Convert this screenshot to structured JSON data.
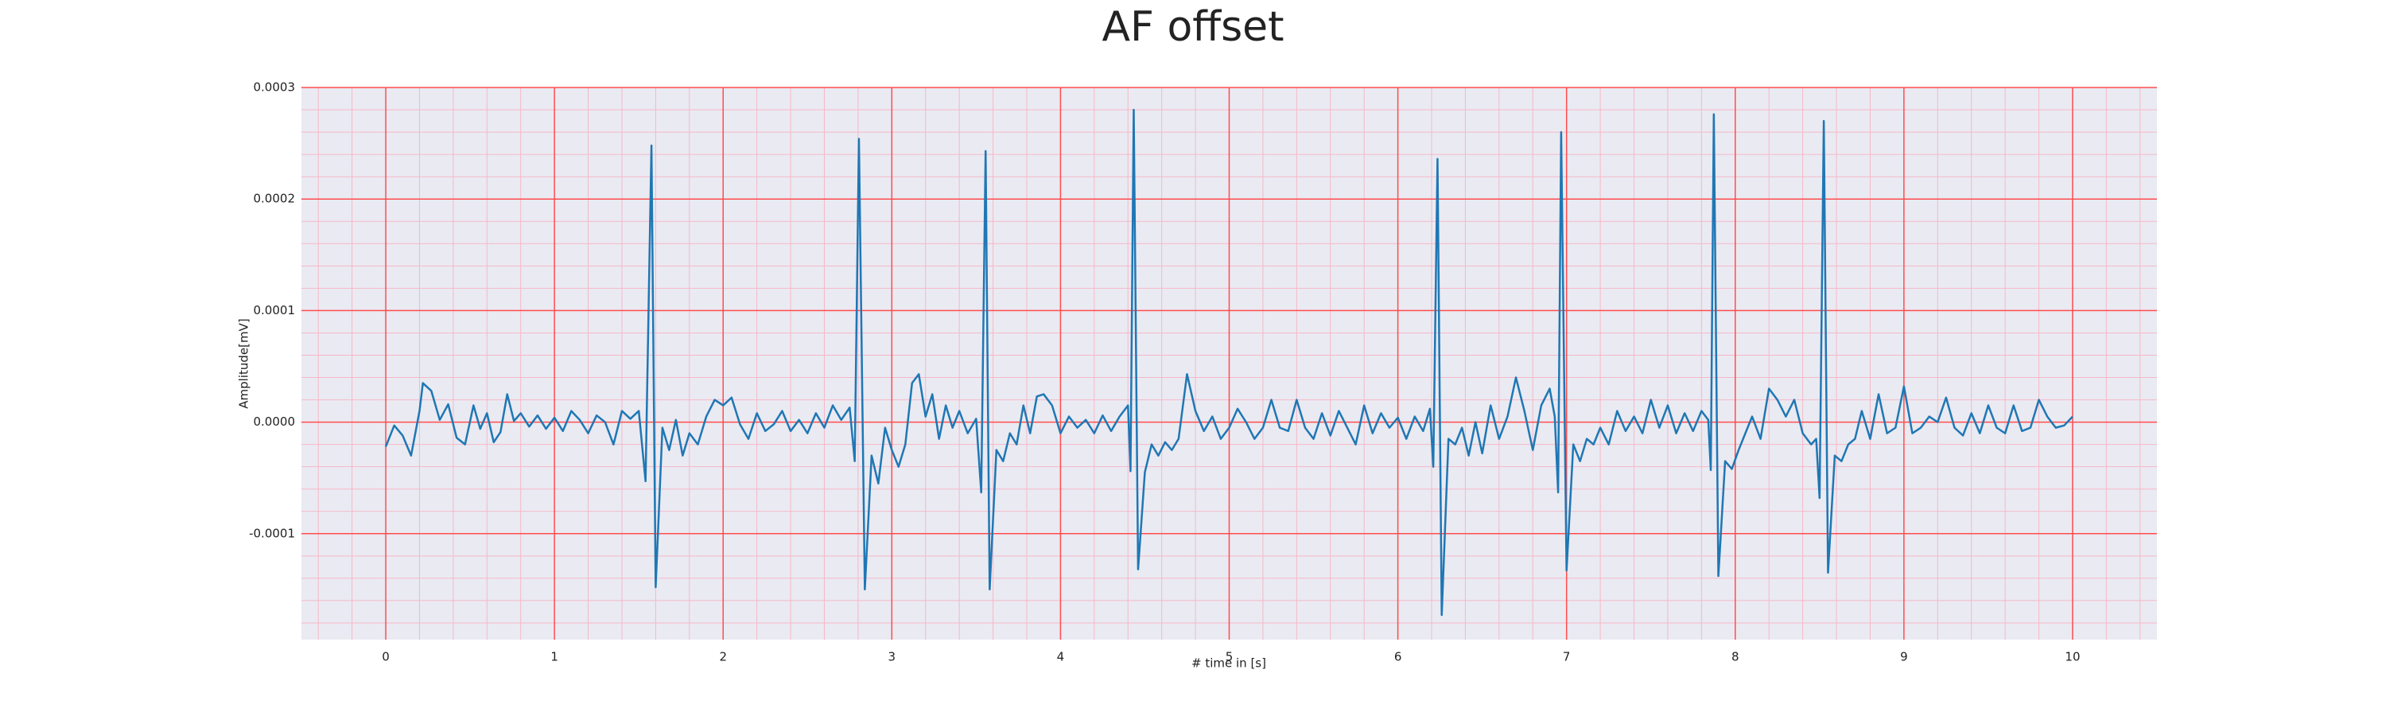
{
  "chart_data": {
    "type": "line",
    "title": "AF offset",
    "xlabel": "# time in [s]",
    "ylabel": "Amplitude[mV]",
    "x": [
      0,
      0.05,
      0.1,
      0.15,
      0.2,
      0.22,
      0.27,
      0.32,
      0.37,
      0.42,
      0.47,
      0.52,
      0.56,
      0.6,
      0.64,
      0.68,
      0.72,
      0.76,
      0.8,
      0.85,
      0.9,
      0.95,
      1.0,
      1.05,
      1.1,
      1.15,
      1.2,
      1.25,
      1.3,
      1.35,
      1.4,
      1.45,
      1.5,
      1.54,
      1.575,
      1.6,
      1.64,
      1.68,
      1.72,
      1.76,
      1.8,
      1.85,
      1.9,
      1.95,
      2.0,
      2.05,
      2.1,
      2.15,
      2.2,
      2.25,
      2.3,
      2.35,
      2.4,
      2.45,
      2.5,
      2.55,
      2.6,
      2.65,
      2.7,
      2.75,
      2.78,
      2.805,
      2.84,
      2.88,
      2.92,
      2.96,
      3.0,
      3.04,
      3.08,
      3.12,
      3.16,
      3.2,
      3.24,
      3.28,
      3.32,
      3.36,
      3.4,
      3.45,
      3.5,
      3.53,
      3.556,
      3.58,
      3.62,
      3.66,
      3.7,
      3.74,
      3.78,
      3.82,
      3.86,
      3.9,
      3.95,
      4.0,
      4.05,
      4.1,
      4.15,
      4.2,
      4.25,
      4.3,
      4.35,
      4.4,
      4.415,
      4.434,
      4.46,
      4.5,
      4.54,
      4.58,
      4.62,
      4.66,
      4.7,
      4.75,
      4.8,
      4.85,
      4.9,
      4.95,
      5.0,
      5.05,
      5.1,
      5.15,
      5.2,
      5.25,
      5.3,
      5.35,
      5.4,
      5.45,
      5.5,
      5.55,
      5.6,
      5.65,
      5.7,
      5.75,
      5.8,
      5.85,
      5.9,
      5.95,
      6.0,
      6.05,
      6.1,
      6.15,
      6.19,
      6.21,
      6.235,
      6.26,
      6.3,
      6.34,
      6.38,
      6.42,
      6.46,
      6.5,
      6.55,
      6.6,
      6.65,
      6.7,
      6.75,
      6.8,
      6.85,
      6.9,
      6.93,
      6.95,
      6.968,
      7.0,
      7.04,
      7.08,
      7.12,
      7.16,
      7.2,
      7.25,
      7.3,
      7.35,
      7.4,
      7.45,
      7.5,
      7.55,
      7.6,
      7.65,
      7.7,
      7.75,
      7.8,
      7.84,
      7.855,
      7.873,
      7.9,
      7.94,
      7.98,
      8.02,
      8.06,
      8.1,
      8.15,
      8.2,
      8.25,
      8.3,
      8.35,
      8.4,
      8.45,
      8.48,
      8.5,
      8.525,
      8.55,
      8.59,
      8.63,
      8.67,
      8.71,
      8.75,
      8.8,
      8.85,
      8.9,
      8.95,
      9.0,
      9.05,
      9.1,
      9.15,
      9.2,
      9.25,
      9.3,
      9.35,
      9.4,
      9.45,
      9.5,
      9.55,
      9.6,
      9.65,
      9.7,
      9.75,
      9.8,
      9.85,
      9.9,
      9.95,
      10.0
    ],
    "series": [
      {
        "name": "AF offset",
        "color": "#1f77b4",
        "values": [
          -2.2e-05,
          -3e-06,
          -1.2e-05,
          -3e-05,
          1e-05,
          3.5e-05,
          2.8e-05,
          2e-06,
          1.6e-05,
          -1.4e-05,
          -2e-05,
          1.5e-05,
          -6e-06,
          8e-06,
          -1.8e-05,
          -9e-06,
          2.5e-05,
          1e-06,
          8e-06,
          -4e-06,
          6e-06,
          -6e-06,
          4e-06,
          -8e-06,
          1e-05,
          2e-06,
          -1e-05,
          6e-06,
          0,
          -2e-05,
          1e-05,
          3e-06,
          1e-05,
          -5.3e-05,
          0.000248,
          -0.000148,
          -5e-06,
          -2.5e-05,
          2e-06,
          -3e-05,
          -1e-05,
          -2e-05,
          5e-06,
          2e-05,
          1.5e-05,
          2.2e-05,
          -2e-06,
          -1.5e-05,
          8e-06,
          -8e-06,
          -2e-06,
          1e-05,
          -8e-06,
          2e-06,
          -1e-05,
          8e-06,
          -5e-06,
          1.5e-05,
          2e-06,
          1.3e-05,
          -3.5e-05,
          0.000254,
          -0.00015,
          -3e-05,
          -5.5e-05,
          -5e-06,
          -2.5e-05,
          -4e-05,
          -2e-05,
          3.5e-05,
          4.3e-05,
          5e-06,
          2.5e-05,
          -1.5e-05,
          1.5e-05,
          -5e-06,
          1e-05,
          -1e-05,
          3e-06,
          -6.3e-05,
          0.000243,
          -0.00015,
          -2.5e-05,
          -3.5e-05,
          -1e-05,
          -2e-05,
          1.5e-05,
          -1e-05,
          2.3e-05,
          2.5e-05,
          1.5e-05,
          -1e-05,
          5e-06,
          -5e-06,
          2e-06,
          -1e-05,
          6e-06,
          -8e-06,
          5e-06,
          1.5e-05,
          -4.4e-05,
          0.00028,
          -0.000132,
          -4.5e-05,
          -2e-05,
          -3e-05,
          -1.8e-05,
          -2.5e-05,
          -1.5e-05,
          4.3e-05,
          1e-05,
          -8e-06,
          5e-06,
          -1.5e-05,
          -5e-06,
          1.2e-05,
          0,
          -1.5e-05,
          -5e-06,
          2e-05,
          -5e-06,
          -8e-06,
          2e-05,
          -5e-06,
          -1.5e-05,
          8e-06,
          -1.2e-05,
          1e-05,
          -5e-06,
          -2e-05,
          1.5e-05,
          -1e-05,
          8e-06,
          -5e-06,
          4e-06,
          -1.5e-05,
          5e-06,
          -8e-06,
          1.2e-05,
          -4e-05,
          0.000236,
          -0.000173,
          -1.5e-05,
          -2e-05,
          -5e-06,
          -3e-05,
          0,
          -2.8e-05,
          1.5e-05,
          -1.5e-05,
          5e-06,
          4e-05,
          1e-05,
          -2.5e-05,
          1.5e-05,
          3e-05,
          5e-06,
          -6.3e-05,
          0.00026,
          -0.000133,
          -2e-05,
          -3.5e-05,
          -1.5e-05,
          -2e-05,
          -5e-06,
          -2e-05,
          1e-05,
          -8e-06,
          5e-06,
          -1e-05,
          2e-05,
          -5e-06,
          1.5e-05,
          -1e-05,
          8e-06,
          -8e-06,
          1e-05,
          2e-06,
          -4.3e-05,
          0.000276,
          -0.000138,
          -3.5e-05,
          -4.2e-05,
          -2.5e-05,
          -1e-05,
          5e-06,
          -1.5e-05,
          3e-05,
          2e-05,
          5e-06,
          2e-05,
          -1e-05,
          -2e-05,
          -1.5e-05,
          -6.8e-05,
          0.00027,
          -0.000135,
          -3e-05,
          -3.5e-05,
          -2e-05,
          -1.5e-05,
          1e-05,
          -1.5e-05,
          2.5e-05,
          -1e-05,
          -5e-06,
          3.2e-05,
          -1e-05,
          -5e-06,
          5e-06,
          0,
          2.2e-05,
          -5e-06,
          -1.2e-05,
          8e-06,
          -1e-05,
          1.5e-05,
          -5e-06,
          -1e-05,
          1.5e-05,
          -8e-06,
          -5e-06,
          2e-05,
          5e-06,
          -5e-06,
          -3e-06,
          5e-06
        ]
      }
    ],
    "xlim": [
      -0.5,
      10.5
    ],
    "xticks": [
      0,
      1,
      2,
      3,
      4,
      5,
      6,
      7,
      8,
      9,
      10
    ],
    "ylim": [
      -0.000195,
      0.0003
    ],
    "yticks": [
      {
        "value": -0.0001,
        "label": "-0.0001"
      },
      {
        "value": 0,
        "label": "0.0000"
      },
      {
        "value": 0.0001,
        "label": "0.0001"
      },
      {
        "value": 0.0002,
        "label": "0.0002"
      },
      {
        "value": 0.0003,
        "label": "0.0003"
      }
    ],
    "grid": true,
    "grid_color": "#ff4d4d",
    "minor_divisions": 5,
    "minor_grid_color": "#f5b8c8",
    "background": "#eaeaf2"
  }
}
